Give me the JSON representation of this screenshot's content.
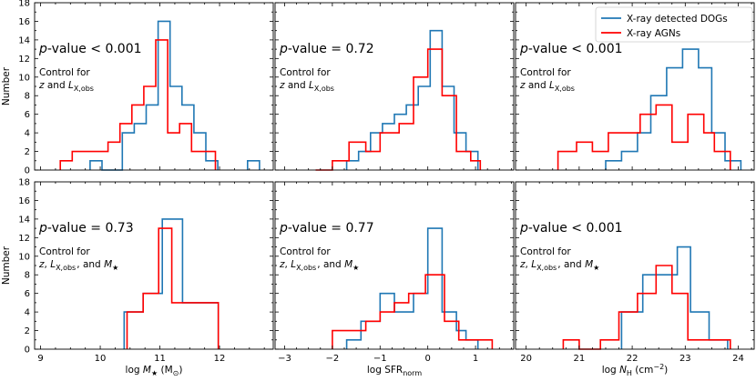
{
  "chart_data": [
    {
      "type": "histogram",
      "row": 0,
      "col": 0,
      "xlim": [
        8.9,
        12.9
      ],
      "ylim": [
        0,
        18
      ],
      "pvalue": "< 0.001",
      "control_lines": [
        "Control for",
        "z and L_{X,obs}"
      ],
      "series": [
        {
          "name": "X-ray detected DOGs",
          "color": "#1f77b4",
          "edges": [
            9.83,
            10.03,
            10.37,
            10.57,
            10.77,
            10.97,
            11.17,
            11.37,
            11.57,
            11.77,
            11.97
          ],
          "counts": [
            1,
            0,
            4,
            5,
            7,
            16,
            9,
            7,
            4,
            1
          ]
        },
        {
          "name": "X-ray AGNs",
          "color": "#ff0000",
          "edges": [
            9.33,
            9.53,
            9.73,
            9.93,
            10.13,
            10.33,
            10.53,
            10.73,
            10.93,
            11.13,
            11.33,
            11.53,
            11.73,
            11.93
          ],
          "counts": [
            1,
            2,
            2,
            2,
            3,
            5,
            7,
            9,
            14,
            4,
            5,
            2,
            2
          ]
        },
        {
          "name": "X-ray detected DOGs",
          "color": "#1f77b4",
          "edges": [
            12.47,
            12.67
          ],
          "counts": [
            1
          ]
        }
      ]
    },
    {
      "type": "histogram",
      "row": 0,
      "col": 1,
      "xlim": [
        -3.2,
        1.8
      ],
      "ylim": [
        0,
        18
      ],
      "pvalue": "= 0.72",
      "control_lines": [
        "Control for",
        "z and L_{X,obs}"
      ],
      "series": [
        {
          "name": "X-ray detected DOGs",
          "color": "#1f77b4",
          "edges": [
            -1.7,
            -1.45,
            -1.2,
            -0.95,
            -0.7,
            -0.45,
            -0.2,
            0.05,
            0.3,
            0.55,
            0.8,
            1.05
          ],
          "counts": [
            1,
            2,
            4,
            5,
            6,
            7,
            9,
            15,
            9,
            4,
            2
          ]
        },
        {
          "name": "X-ray AGNs",
          "color": "#ff0000",
          "edges": [
            -2.35,
            -2.0,
            -1.65,
            -1.3,
            -1.0,
            -0.6,
            -0.3,
            0.0,
            0.3,
            0.6,
            0.9,
            1.1
          ],
          "counts": [
            0,
            1,
            3,
            2,
            4,
            5,
            10,
            13,
            8,
            2,
            1
          ]
        }
      ]
    },
    {
      "type": "histogram",
      "row": 0,
      "col": 2,
      "xlim": [
        19.8,
        24.3
      ],
      "ylim": [
        0,
        18
      ],
      "pvalue": "< 0.001",
      "control_lines": [
        "Control for",
        "z and L_{X,obs}"
      ],
      "series": [
        {
          "name": "X-ray detected DOGs",
          "color": "#1f77b4",
          "edges": [
            21.5,
            21.8,
            22.1,
            22.35,
            22.65,
            22.95,
            23.25,
            23.5,
            23.75,
            24.05
          ],
          "counts": [
            1,
            2,
            4,
            8,
            11,
            13,
            11,
            4,
            1
          ]
        },
        {
          "name": "X-ray AGNs",
          "color": "#ff0000",
          "edges": [
            20.6,
            20.95,
            21.25,
            21.55,
            21.85,
            22.15,
            22.45,
            22.75,
            23.05,
            23.35,
            23.55,
            23.85
          ],
          "counts": [
            2,
            3,
            2,
            4,
            4,
            6,
            7,
            3,
            6,
            4,
            2
          ]
        }
      ]
    },
    {
      "type": "histogram",
      "row": 1,
      "col": 0,
      "xlim": [
        8.9,
        12.9
      ],
      "ylim": [
        0,
        18
      ],
      "pvalue": "= 0.73",
      "control_lines": [
        "Control for",
        "z, L_{X,obs}, and M_★"
      ],
      "series": [
        {
          "name": "X-ray detected DOGs",
          "color": "#1f77b4",
          "edges": [
            10.4,
            10.72,
            11.04,
            11.38,
            11.98
          ],
          "counts": [
            4,
            6,
            14,
            5
          ]
        },
        {
          "name": "X-ray AGNs",
          "color": "#ff0000",
          "edges": [
            10.45,
            10.72,
            10.98,
            11.2,
            11.98
          ],
          "counts": [
            4,
            6,
            13,
            5
          ]
        }
      ]
    },
    {
      "type": "histogram",
      "row": 1,
      "col": 1,
      "xlim": [
        -3.2,
        1.8
      ],
      "ylim": [
        0,
        18
      ],
      "pvalue": "= 0.77",
      "control_lines": [
        "Control for",
        "z, L_{X,obs}, and M_★"
      ],
      "series": [
        {
          "name": "X-ray detected DOGs",
          "color": "#1f77b4",
          "edges": [
            -1.7,
            -1.4,
            -1.0,
            -0.7,
            -0.3,
            0.0,
            0.3,
            0.6,
            0.8,
            1.05
          ],
          "counts": [
            1,
            3,
            6,
            4,
            6,
            13,
            4,
            2,
            1
          ]
        },
        {
          "name": "X-ray AGNs",
          "color": "#ff0000",
          "edges": [
            -2.0,
            -1.65,
            -1.3,
            -1.0,
            -0.7,
            -0.4,
            -0.05,
            0.35,
            0.65,
            1.0,
            1.35
          ],
          "counts": [
            2,
            2,
            3,
            4,
            5,
            6,
            8,
            3,
            1,
            1
          ]
        }
      ]
    },
    {
      "type": "histogram",
      "row": 1,
      "col": 2,
      "xlim": [
        19.8,
        24.3
      ],
      "ylim": [
        0,
        18
      ],
      "pvalue": "< 0.001",
      "control_lines": [
        "Control for",
        "z, L_{X,obs}, and M_★"
      ],
      "series": [
        {
          "name": "X-ray detected DOGs",
          "color": "#1f77b4",
          "edges": [
            21.8,
            22.2,
            22.55,
            22.85,
            23.1,
            23.45,
            23.8
          ],
          "counts": [
            4,
            8,
            8,
            11,
            4,
            1
          ]
        },
        {
          "name": "X-ray AGNs",
          "color": "#ff0000",
          "edges": [
            20.7,
            21.0,
            21.4,
            21.75,
            22.1,
            22.45,
            22.75,
            23.05,
            23.45,
            23.85
          ],
          "counts": [
            1,
            0,
            1,
            4,
            6,
            9,
            6,
            1,
            1
          ]
        }
      ]
    }
  ],
  "legend": {
    "placement": "top-right",
    "entries": [
      {
        "label": "X-ray detected DOGs",
        "color": "#1f77b4"
      },
      {
        "label": "X-ray AGNs",
        "color": "#ff0000"
      }
    ]
  },
  "axes": {
    "ylabel": "Number",
    "yticks": [
      "0",
      "2",
      "4",
      "6",
      "8",
      "10",
      "12",
      "14",
      "16",
      "18"
    ],
    "pvalue_prefix": "p",
    "pvalue_word": "-value",
    "xlabels": [
      {
        "prefix": "log ",
        "symbol": "M",
        "sub": "★",
        "suffix": " (M",
        "suffix_sub": "⊙",
        "close": ")"
      },
      {
        "prefix": "log SFR",
        "sub": "norm"
      },
      {
        "prefix": "log ",
        "symbol": "N",
        "sub": "H",
        "unit": " (cm",
        "sup": "−2",
        "close": ")"
      }
    ],
    "xticks": [
      [
        "9",
        "10",
        "11",
        "12"
      ],
      [
        "−3",
        "−2",
        "−1",
        "0",
        "1"
      ],
      [
        "20",
        "21",
        "22",
        "23",
        "24"
      ]
    ]
  }
}
